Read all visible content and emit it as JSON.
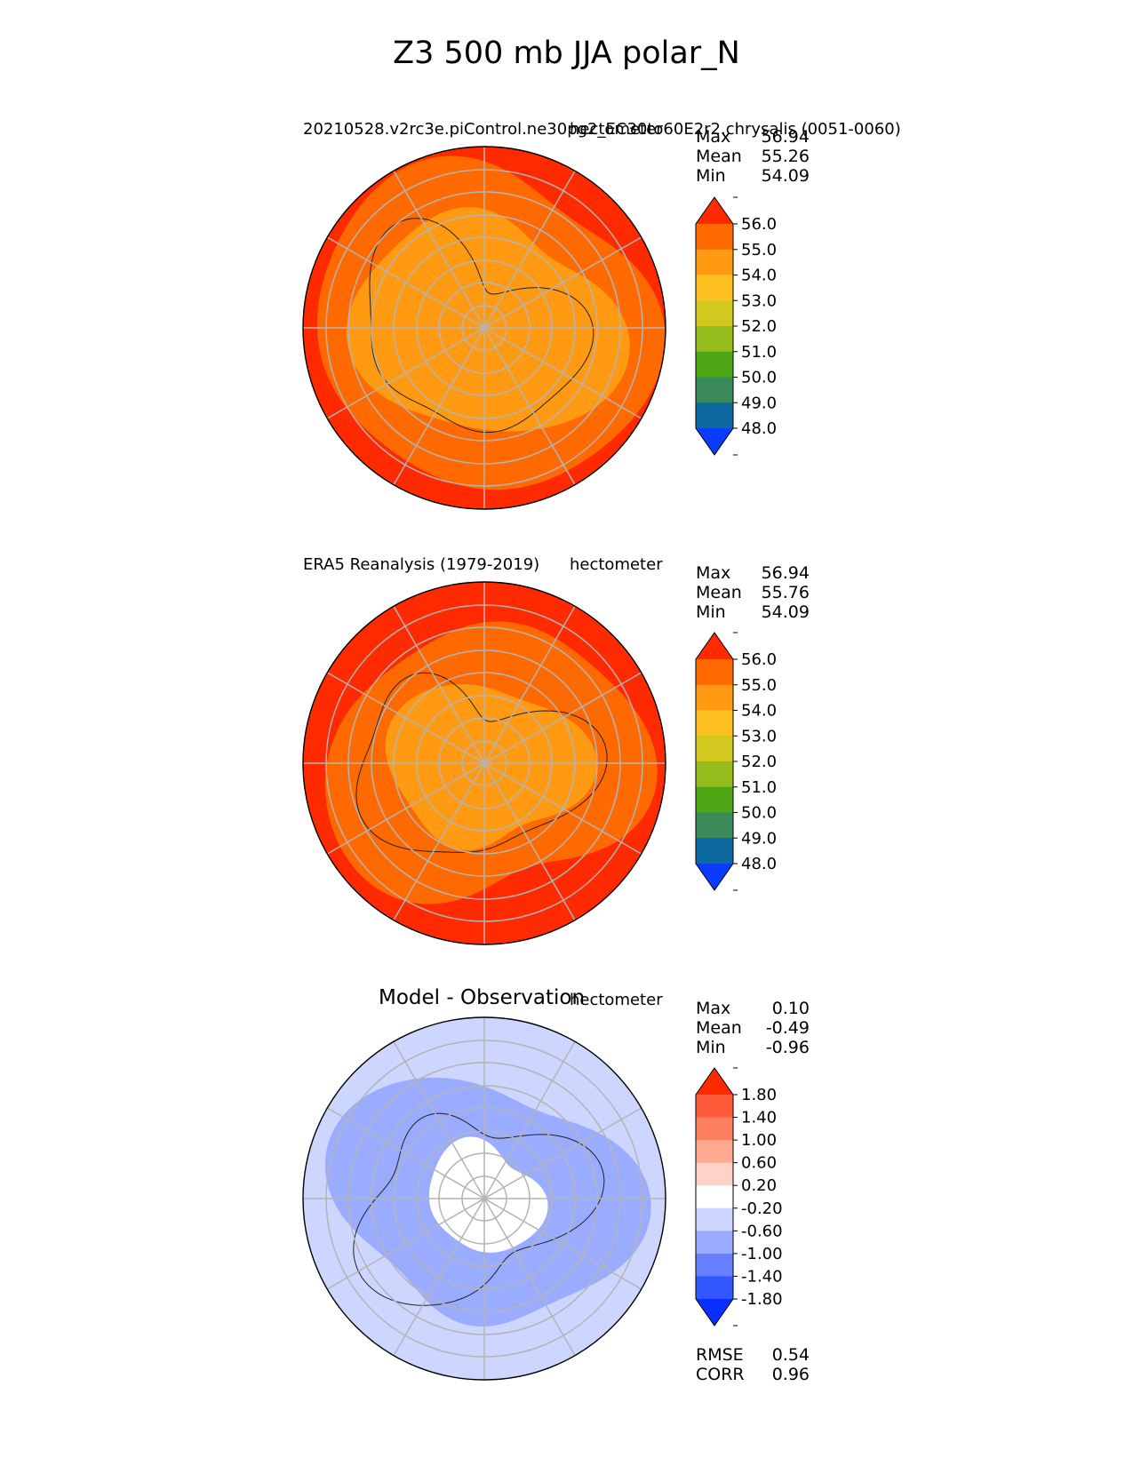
{
  "suptitle": "Z3 500 mb JJA polar_N",
  "chart_data": [
    {
      "type": "heatmap",
      "projection": "north polar stereographic",
      "left_title": "20210528.v2rc3e.piControl.ne30pg2_EC30to60E2r2.chrysalis (0051-0060)",
      "units": "hectometer",
      "stats": {
        "Max": "56.94",
        "Mean": "55.26",
        "Min": "54.09"
      },
      "colorbar": {
        "ticks": [
          "56.0",
          "55.0",
          "54.0",
          "53.0",
          "52.0",
          "51.0",
          "50.0",
          "49.0",
          "48.0"
        ],
        "colors": [
          "#ff2a00",
          "#ff6a00",
          "#ff9a12",
          "#ffc022",
          "#d2c820",
          "#94bc1c",
          "#4ea614",
          "#3a8a5a",
          "#0c6aa0",
          "#0a3cff"
        ],
        "extend": "both"
      },
      "field": {
        "center_band": "54.0-55.0",
        "mid_band": "55.0-56.0",
        "outer_band": ">56.0"
      }
    },
    {
      "type": "heatmap",
      "projection": "north polar stereographic",
      "left_title": "ERA5 Reanalysis (1979-2019)",
      "units": "hectometer",
      "stats": {
        "Max": "56.94",
        "Mean": "55.76",
        "Min": "54.09"
      },
      "colorbar": {
        "ticks": [
          "56.0",
          "55.0",
          "54.0",
          "53.0",
          "52.0",
          "51.0",
          "50.0",
          "49.0",
          "48.0"
        ],
        "colors": [
          "#ff2a00",
          "#ff6a00",
          "#ff9a12",
          "#ffc022",
          "#d2c820",
          "#94bc1c",
          "#4ea614",
          "#3a8a5a",
          "#0c6aa0",
          "#0a3cff"
        ],
        "extend": "both"
      },
      "field": {
        "center_band": "54.0-55.0",
        "mid_band": "55.0-56.0",
        "outer_band": ">56.0"
      }
    },
    {
      "type": "heatmap",
      "projection": "north polar stereographic",
      "title": "Model - Observation",
      "units": "hectometer",
      "stats": {
        "Max": "0.10",
        "Mean": "-0.49",
        "Min": "-0.96"
      },
      "metrics": {
        "RMSE": "0.54",
        "CORR": "0.96"
      },
      "colorbar": {
        "ticks": [
          "1.80",
          "1.40",
          "1.00",
          "0.60",
          "0.20",
          "-0.20",
          "-0.60",
          "-1.00",
          "-1.40",
          "-1.80"
        ],
        "colors": [
          "#ff2a00",
          "#ff5a3a",
          "#ff8060",
          "#ffa890",
          "#ffd2c8",
          "#ffffff",
          "#ccd6ff",
          "#99acff",
          "#6680ff",
          "#3358ff",
          "#0a30ff"
        ],
        "extend": "both"
      },
      "field": {
        "center_band": "-0.20-0.20",
        "mid_band": "-1.00--0.60",
        "outer_band": "-0.60--0.20"
      }
    }
  ]
}
